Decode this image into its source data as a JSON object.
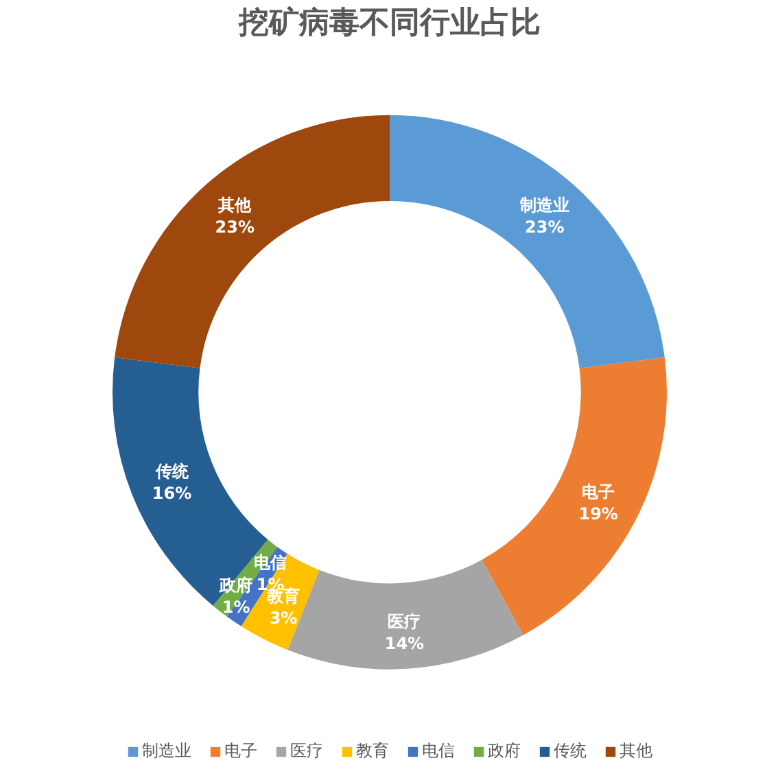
{
  "chart_data": {
    "type": "donut",
    "title": "挖矿病毒不同行业占比",
    "categories": [
      "制造业",
      "电子",
      "医疗",
      "教育",
      "电信",
      "政府",
      "传统",
      "其他"
    ],
    "values": [
      23,
      19,
      14,
      3,
      1,
      1,
      16,
      23
    ],
    "colors": [
      "#5b9bd5",
      "#ed7d31",
      "#a5a5a5",
      "#ffc000",
      "#4472c4",
      "#70ad47",
      "#255e91",
      "#9e480e"
    ],
    "value_labels": [
      "23%",
      "19%",
      "14%",
      "3%",
      "1%",
      "1%",
      "16%",
      "23%"
    ],
    "legend": "bottom"
  }
}
